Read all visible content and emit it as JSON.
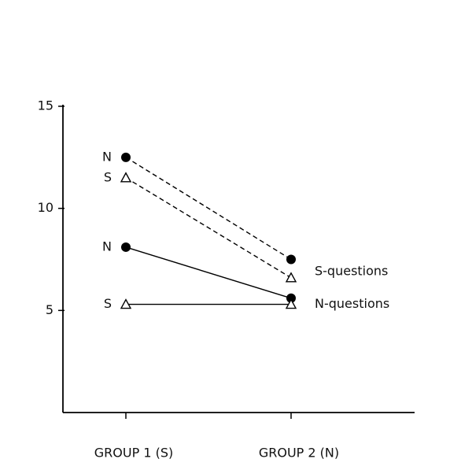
{
  "chart_data": {
    "type": "line",
    "categories": [
      "GROUP 1 (S)",
      "GROUP 2 (N)"
    ],
    "ylim": [
      0,
      15
    ],
    "yticks": [
      5,
      10,
      15
    ],
    "groups": [
      {
        "label": "S-questions",
        "line_style": "dashed",
        "series": [
          {
            "name": "N",
            "marker": "circle",
            "color": "#000000",
            "values": [
              12.5,
              7.5
            ]
          },
          {
            "name": "S",
            "marker": "triangle",
            "color": "#000000",
            "values": [
              11.5,
              6.6
            ]
          }
        ]
      },
      {
        "label": "N-questions",
        "line_style": "solid",
        "series": [
          {
            "name": "N",
            "marker": "circle",
            "color": "#000000",
            "values": [
              8.1,
              5.6
            ]
          },
          {
            "name": "S",
            "marker": "triangle",
            "color": "#000000",
            "values": [
              5.3,
              5.3
            ]
          }
        ]
      }
    ]
  }
}
